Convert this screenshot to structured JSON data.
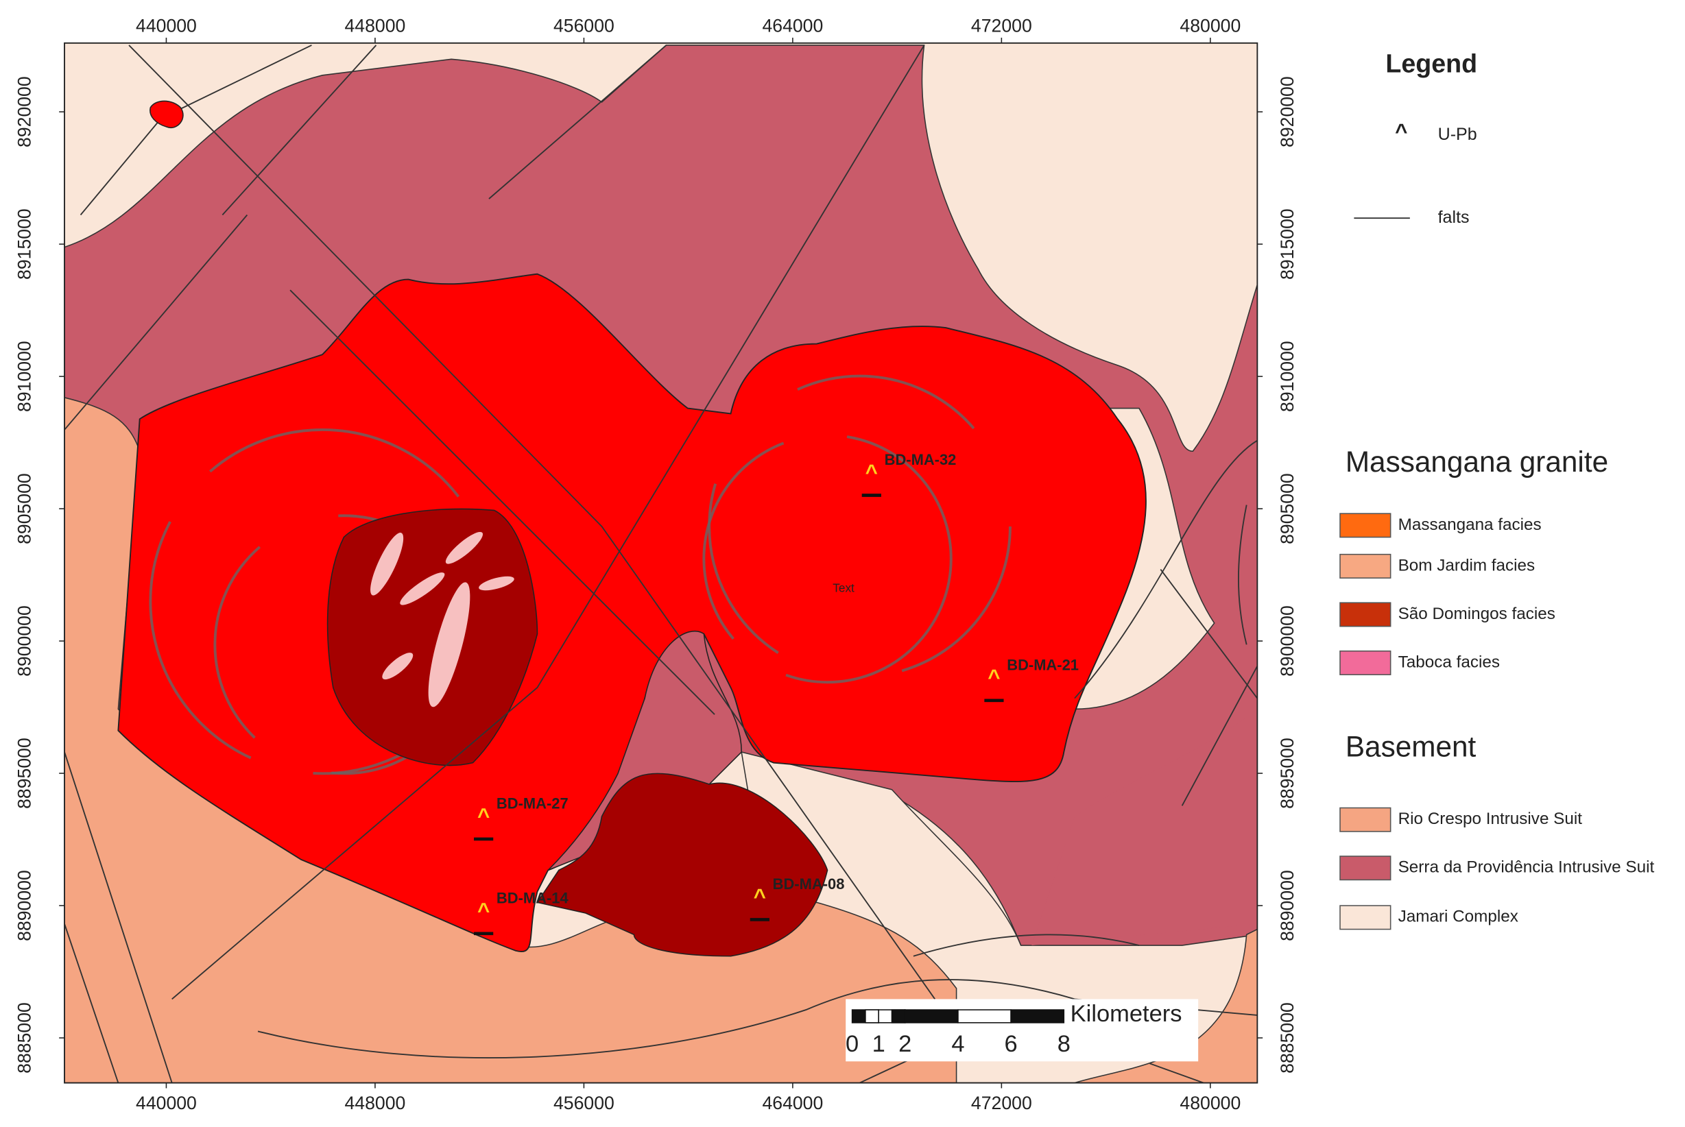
{
  "map": {
    "axes": {
      "xlim": [
        436100,
        481800
      ],
      "ylim": [
        8883300,
        8922600
      ],
      "xticks": [
        440000,
        448000,
        456000,
        464000,
        472000,
        480000
      ],
      "yticks": [
        8885000,
        8890000,
        8895000,
        8900000,
        8905000,
        8910000,
        8915000,
        8920000
      ]
    },
    "annotation": "Text",
    "samples": [
      "BD-MA-32",
      "BD-MA-21",
      "BD-MA-27",
      "BD-MA-14",
      "BD-MA-08"
    ],
    "scale_bar": {
      "unit": "Kilometers",
      "ticks": [
        0,
        1,
        2,
        4,
        6,
        8
      ]
    },
    "legend": {
      "title": "Legend",
      "symbol": "U-Pb",
      "line": "falts",
      "groups": [
        {
          "title": "Massangana granite",
          "items": [
            "Massangana facies",
            "Bom Jardim facies",
            "São Domingos facies",
            "Taboca facies"
          ]
        },
        {
          "title": "Basement",
          "items": [
            "Rio Crespo Intrusive Suit",
            "Serra da Providência Intrusive Suit",
            "Jamari Complex"
          ]
        }
      ]
    }
  }
}
